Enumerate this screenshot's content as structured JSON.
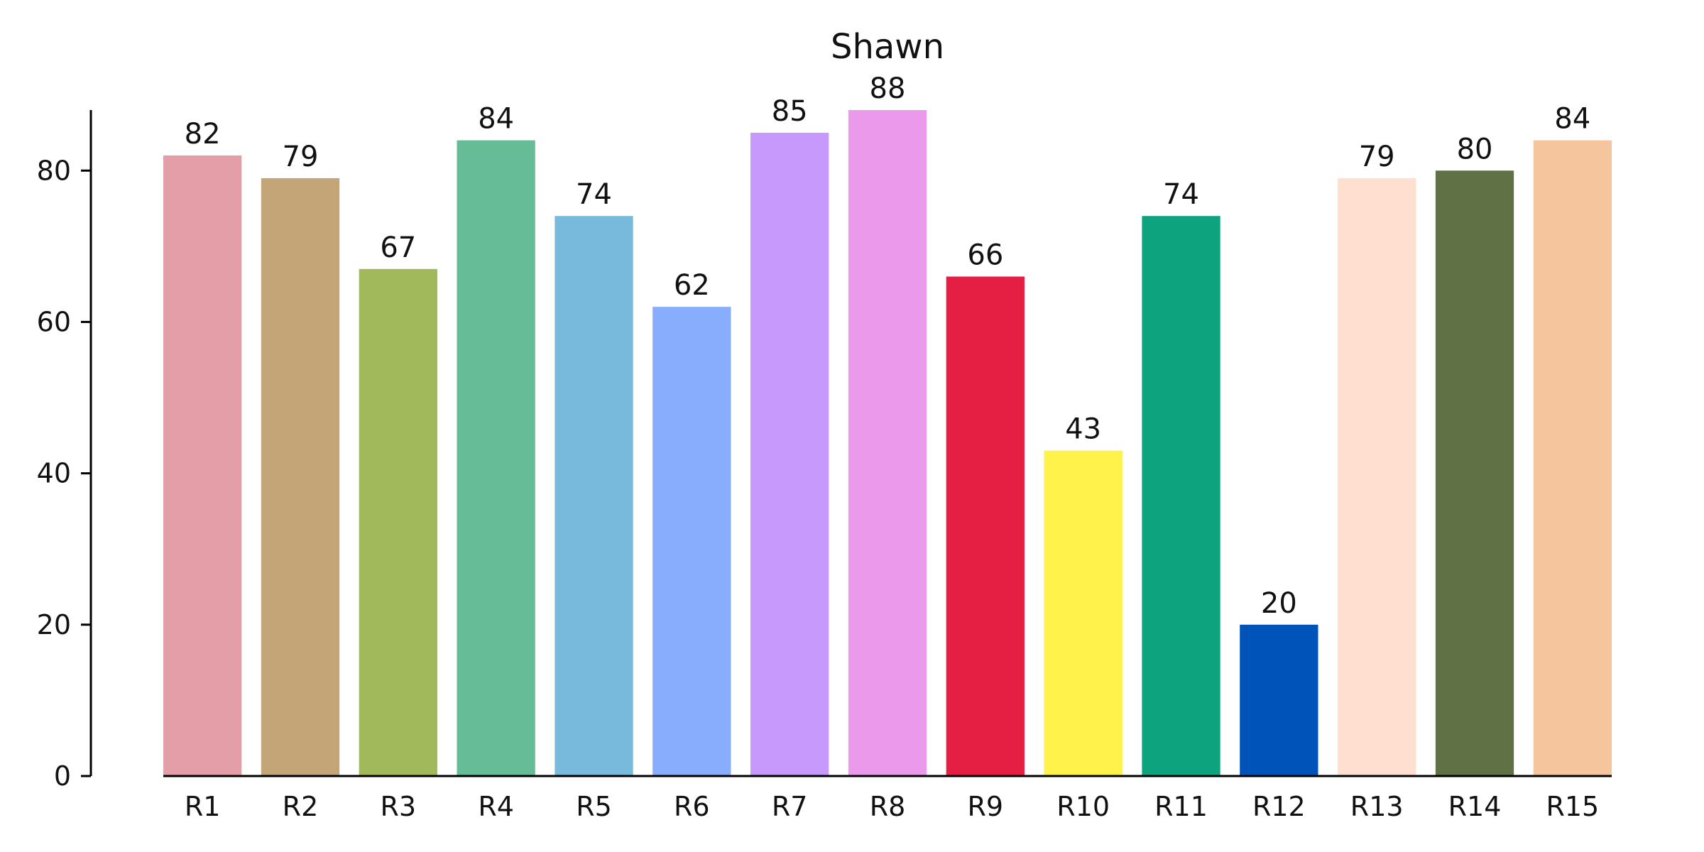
{
  "chart_data": {
    "type": "bar",
    "title": "Shawn",
    "xlabel": "",
    "ylabel": "",
    "categories": [
      "R1",
      "R2",
      "R3",
      "R4",
      "R5",
      "R6",
      "R7",
      "R8",
      "R9",
      "R10",
      "R11",
      "R12",
      "R13",
      "R14",
      "R15"
    ],
    "values": [
      82,
      79,
      67,
      84,
      74,
      62,
      85,
      88,
      66,
      43,
      74,
      20,
      79,
      80,
      84
    ],
    "colors": [
      "#e49ea7",
      "#c4a577",
      "#a2b95b",
      "#65bc96",
      "#77badb",
      "#88adfc",
      "#c799fd",
      "#eb99eb",
      "#e51e43",
      "#fff24b",
      "#0ea37f",
      "#0053b8",
      "#ffe0d0",
      "#617146",
      "#f5c59e"
    ],
    "ylim": [
      0,
      88
    ],
    "yticks": [
      0,
      20,
      40,
      60,
      80
    ],
    "grid": false,
    "legend": "none"
  }
}
